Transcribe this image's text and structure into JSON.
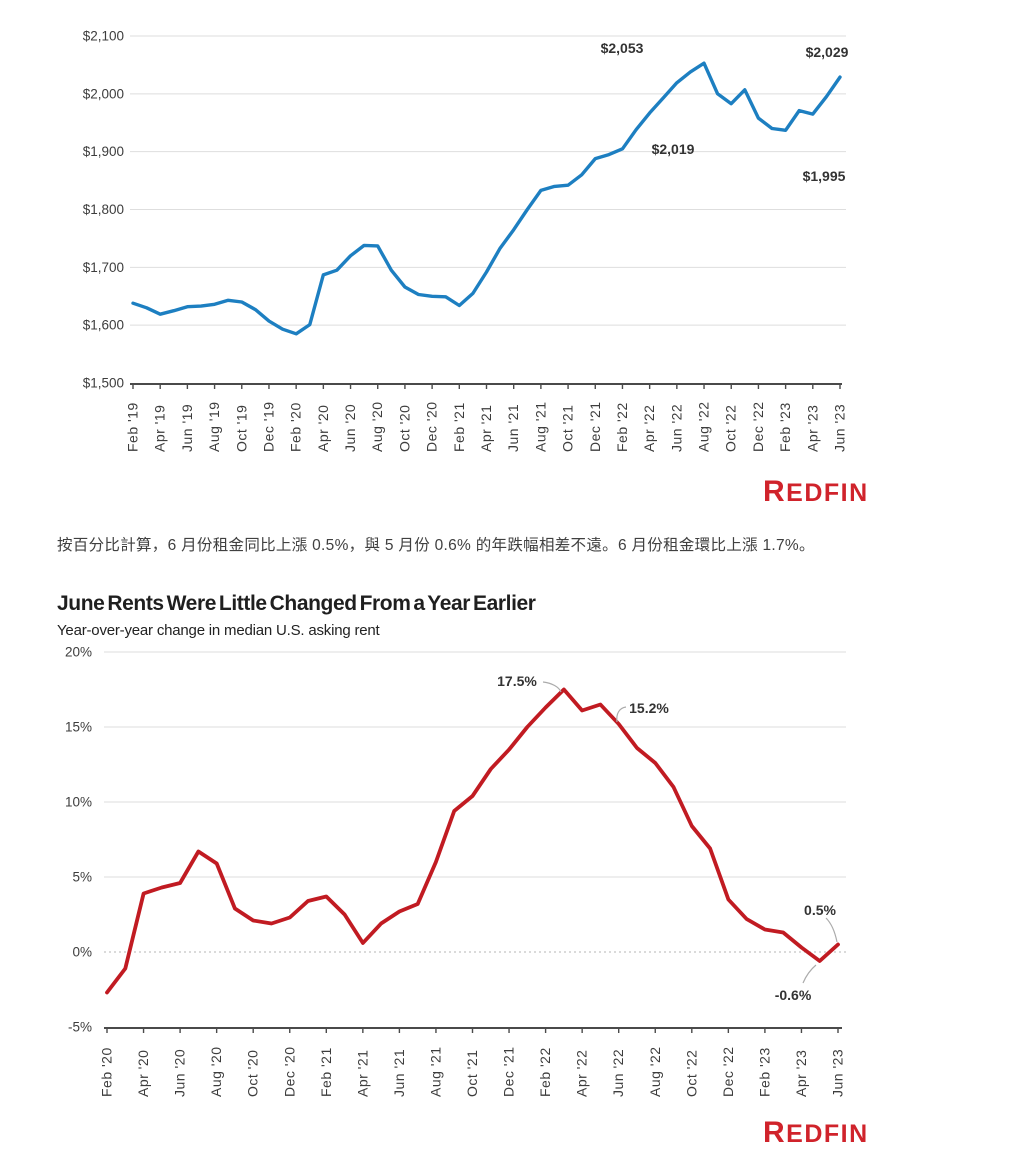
{
  "branding": {
    "logo_text": "REDFIN",
    "logo_color": "#d0232b"
  },
  "paragraph": {
    "text": "按百分比計算，6 月份租金同比上漲 0.5%，與 5 月份 0.6% 的年跌幅相差不遠。6 月份租金環比上漲 1.7%。"
  },
  "chart_data": [
    {
      "type": "line",
      "name": "median-us-asking-rent",
      "line_color": "#1d7fc1",
      "ylim": [
        1500,
        2100
      ],
      "yticks": {
        "labels": [
          "$2,100",
          "$2,000",
          "$1,900",
          "$1,800",
          "$1,700",
          "$1,600",
          "$1,500"
        ],
        "values": [
          2100,
          2000,
          1900,
          1800,
          1700,
          1600,
          1500
        ]
      },
      "xtick_labels": [
        "Feb '19",
        "Apr '19",
        "Jun '19",
        "Aug '19",
        "Oct '19",
        "Dec '19",
        "Feb '20",
        "Apr '20",
        "Jun '20",
        "Aug '20",
        "Oct '20",
        "Dec '20",
        "Feb '21",
        "Apr '21",
        "Jun '21",
        "Aug '21",
        "Oct '21",
        "Dec '21",
        "Feb '22",
        "Apr '22",
        "Jun '22",
        "Aug '22",
        "Oct '22",
        "Dec '22",
        "Feb '23",
        "Apr '23",
        "Jun '23"
      ],
      "x": [
        "Feb '19",
        "Mar '19",
        "Apr '19",
        "May '19",
        "Jun '19",
        "Jul '19",
        "Aug '19",
        "Sep '19",
        "Oct '19",
        "Nov '19",
        "Dec '19",
        "Jan '20",
        "Feb '20",
        "Mar '20",
        "Apr '20",
        "May '20",
        "Jun '20",
        "Jul '20",
        "Aug '20",
        "Sep '20",
        "Oct '20",
        "Nov '20",
        "Dec '20",
        "Jan '21",
        "Feb '21",
        "Mar '21",
        "Apr '21",
        "May '21",
        "Jun '21",
        "Jul '21",
        "Aug '21",
        "Sep '21",
        "Oct '21",
        "Nov '21",
        "Dec '21",
        "Jan '22",
        "Feb '22",
        "Mar '22",
        "Apr '22",
        "May '22",
        "Jun '22",
        "Jul '22",
        "Aug '22",
        "Sep '22",
        "Oct '22",
        "Nov '22",
        "Dec '22",
        "Jan '23",
        "Feb '23",
        "Mar '23",
        "Apr '23",
        "May '23",
        "Jun '23"
      ],
      "values": [
        1638,
        1630,
        1619,
        1625,
        1632,
        1633,
        1636,
        1643,
        1640,
        1627,
        1607,
        1593,
        1585,
        1601,
        1687,
        1695,
        1720,
        1738,
        1737,
        1695,
        1666,
        1653,
        1650,
        1649,
        1634,
        1655,
        1692,
        1733,
        1765,
        1800,
        1833,
        1840,
        1842,
        1860,
        1888,
        1895,
        1905,
        1938,
        1967,
        1993,
        2019,
        2038,
        2053,
        2000,
        1983,
        2007,
        1958,
        1940,
        1937,
        1971,
        1965,
        1995,
        2029
      ],
      "annotations": [
        {
          "text": "$2,053",
          "month": "Aug '22",
          "value": 2053
        },
        {
          "text": "$2,029",
          "month": "Jun '23",
          "value": 2029
        },
        {
          "text": "$2,019",
          "month": "Jun '22",
          "value": 2019
        },
        {
          "text": "$1,995",
          "month": "May '23",
          "value": 1995
        }
      ]
    },
    {
      "type": "line",
      "name": "yoy-change-median-us-asking-rent",
      "title": "June Rents Were Little Changed From a Year Earlier",
      "subtitle": "Year-over-year change in median U.S. asking rent",
      "line_color": "#c11b22",
      "ylim": [
        -5,
        20
      ],
      "yticks": {
        "labels": [
          "20%",
          "15%",
          "10%",
          "5%",
          "0%",
          "-5%"
        ],
        "values": [
          20,
          15,
          10,
          5,
          0,
          -5
        ]
      },
      "xtick_labels": [
        "Feb '20",
        "Apr '20",
        "Jun '20",
        "Aug '20",
        "Oct '20",
        "Dec '20",
        "Feb '21",
        "Apr '21",
        "Jun '21",
        "Aug '21",
        "Oct '21",
        "Dec '21",
        "Feb '22",
        "Apr '22",
        "Jun '22",
        "Aug '22",
        "Oct '22",
        "Dec '22",
        "Feb '23",
        "Apr '23",
        "Jun '23"
      ],
      "x": [
        "Feb '20",
        "Mar '20",
        "Apr '20",
        "May '20",
        "Jun '20",
        "Jul '20",
        "Aug '20",
        "Sep '20",
        "Oct '20",
        "Nov '20",
        "Dec '20",
        "Jan '21",
        "Feb '21",
        "Mar '21",
        "Apr '21",
        "May '21",
        "Jun '21",
        "Jul '21",
        "Aug '21",
        "Sep '21",
        "Oct '21",
        "Nov '21",
        "Dec '21",
        "Jan '22",
        "Feb '22",
        "Mar '22",
        "Apr '22",
        "May '22",
        "Jun '22",
        "Jul '22",
        "Aug '22",
        "Sep '22",
        "Oct '22",
        "Nov '22",
        "Dec '22",
        "Jan '23",
        "Feb '23",
        "Mar '23",
        "Apr '23",
        "May '23",
        "Jun '23"
      ],
      "values": [
        -2.7,
        -1.1,
        3.9,
        4.3,
        4.6,
        6.7,
        5.9,
        2.9,
        2.1,
        1.9,
        2.3,
        3.4,
        3.7,
        2.5,
        0.6,
        1.9,
        2.7,
        3.2,
        6.0,
        9.4,
        10.4,
        12.2,
        13.5,
        15.0,
        16.3,
        17.5,
        16.1,
        16.5,
        15.2,
        13.6,
        12.6,
        11.0,
        8.4,
        6.9,
        3.5,
        2.2,
        1.5,
        1.3,
        0.3,
        -0.6,
        0.5
      ],
      "annotations": [
        {
          "text": "17.5%",
          "month": "Mar '22",
          "value": 17.5
        },
        {
          "text": "15.2%",
          "month": "Jun '22",
          "value": 15.2
        },
        {
          "text": "0.5%",
          "month": "Jun '23",
          "value": 0.5
        },
        {
          "text": "-0.6%",
          "month": "May '23",
          "value": -0.6
        }
      ]
    }
  ]
}
